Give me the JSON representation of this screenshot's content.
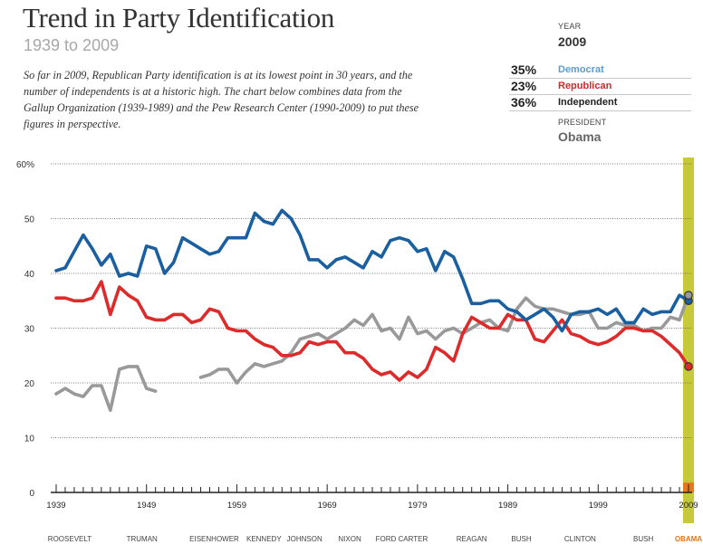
{
  "header": {
    "title": "Trend in Party Identification",
    "subtitle": "1939 to 2009",
    "description": "So far in 2009, Republican Party identification is at its lowest point in 30 years, and the number of independents is at a historic high. The chart below combines data from the Gallup Organization (1939-1989) and the Pew Research Center (1990-2009) to put these figures in perspective."
  },
  "sidebar": {
    "year_label": "YEAR",
    "year_value": "2009",
    "rows": [
      {
        "pct": "35%",
        "name": "Democrat",
        "color": "#5b9bd5"
      },
      {
        "pct": "23%",
        "name": "Republican",
        "color": "#d62728"
      },
      {
        "pct": "36%",
        "name": "Independent",
        "color": "#222222"
      }
    ],
    "president_label": "PRESIDENT",
    "president_value": "Obama"
  },
  "chart_data": {
    "type": "line",
    "title": "",
    "xlabel": "",
    "ylabel": "",
    "xlim": [
      1939,
      2009
    ],
    "ylim": [
      0,
      60
    ],
    "y_ticks": [
      0,
      10,
      20,
      30,
      40,
      50,
      60
    ],
    "y_tick_labels": [
      "0",
      "10",
      "20",
      "30",
      "40",
      "50",
      "60%"
    ],
    "x_ticks": [
      1939,
      1949,
      1959,
      1969,
      1979,
      1989,
      1999,
      2009
    ],
    "x_tick_labels": [
      "1939",
      "1949",
      "1959",
      "1969",
      "1979",
      "1989",
      "1999",
      "2009"
    ],
    "grid": true,
    "highlight_year": 2009,
    "highlight_color": "#c6c93a",
    "series": [
      {
        "name": "Democrat",
        "color": "#1a5fa0",
        "points": [
          [
            1939,
            40.5
          ],
          [
            1940,
            41
          ],
          [
            1941,
            44
          ],
          [
            1942,
            47
          ],
          [
            1943,
            44.5
          ],
          [
            1944,
            41.5
          ],
          [
            1945,
            43.5
          ],
          [
            1946,
            39.5
          ],
          [
            1947,
            40
          ],
          [
            1948,
            39.5
          ],
          [
            1949,
            45
          ],
          [
            1950,
            44.5
          ],
          [
            1951,
            40
          ],
          [
            1952,
            42
          ],
          [
            1953,
            46.5
          ],
          [
            1954,
            45.5
          ],
          [
            1955,
            44.5
          ],
          [
            1956,
            43.5
          ],
          [
            1957,
            44
          ],
          [
            1958,
            46.5
          ],
          [
            1959,
            46.5
          ],
          [
            1960,
            46.5
          ],
          [
            1961,
            51
          ],
          [
            1962,
            49.5
          ],
          [
            1963,
            49
          ],
          [
            1964,
            51.5
          ],
          [
            1965,
            50
          ],
          [
            1966,
            47
          ],
          [
            1967,
            42.5
          ],
          [
            1968,
            42.5
          ],
          [
            1969,
            41
          ],
          [
            1970,
            42.5
          ],
          [
            1971,
            43
          ],
          [
            1972,
            42
          ],
          [
            1973,
            41
          ],
          [
            1974,
            44
          ],
          [
            1975,
            43
          ],
          [
            1976,
            46
          ],
          [
            1977,
            46.5
          ],
          [
            1978,
            46
          ],
          [
            1979,
            44
          ],
          [
            1980,
            44.5
          ],
          [
            1981,
            40.5
          ],
          [
            1982,
            44
          ],
          [
            1983,
            43
          ],
          [
            1984,
            39
          ],
          [
            1985,
            34.5
          ],
          [
            1986,
            34.5
          ],
          [
            1987,
            35
          ],
          [
            1988,
            35
          ],
          [
            1989,
            33.5
          ],
          [
            1990,
            33
          ],
          [
            1991,
            31.5
          ],
          [
            1992,
            32.5
          ],
          [
            1993,
            33.5
          ],
          [
            1994,
            32
          ],
          [
            1995,
            29.5
          ],
          [
            1996,
            32.5
          ],
          [
            1997,
            33
          ],
          [
            1998,
            33
          ],
          [
            1999,
            33.5
          ],
          [
            2000,
            32.5
          ],
          [
            2001,
            33.5
          ],
          [
            2002,
            31
          ],
          [
            2003,
            31
          ],
          [
            2004,
            33.5
          ],
          [
            2005,
            32.5
          ],
          [
            2006,
            33
          ],
          [
            2007,
            33
          ],
          [
            2008,
            36
          ],
          [
            2009,
            35
          ]
        ]
      },
      {
        "name": "Republican",
        "color": "#dd2a2a",
        "points": [
          [
            1939,
            35.5
          ],
          [
            1940,
            35.5
          ],
          [
            1941,
            35
          ],
          [
            1942,
            35
          ],
          [
            1943,
            35.5
          ],
          [
            1944,
            38.5
          ],
          [
            1945,
            32.5
          ],
          [
            1946,
            37.5
          ],
          [
            1947,
            36
          ],
          [
            1948,
            35
          ],
          [
            1949,
            32
          ],
          [
            1950,
            31.5
          ],
          [
            1951,
            31.5
          ],
          [
            1952,
            32.5
          ],
          [
            1953,
            32.5
          ],
          [
            1954,
            31
          ],
          [
            1955,
            31.5
          ],
          [
            1956,
            33.5
          ],
          [
            1957,
            33
          ],
          [
            1958,
            30
          ],
          [
            1959,
            29.5
          ],
          [
            1960,
            29.5
          ],
          [
            1961,
            28
          ],
          [
            1962,
            27
          ],
          [
            1963,
            26.5
          ],
          [
            1964,
            25
          ],
          [
            1965,
            25
          ],
          [
            1966,
            25.5
          ],
          [
            1967,
            27.5
          ],
          [
            1968,
            27
          ],
          [
            1969,
            27.5
          ],
          [
            1970,
            27.5
          ],
          [
            1971,
            25.5
          ],
          [
            1972,
            25.5
          ],
          [
            1973,
            24.5
          ],
          [
            1974,
            22.5
          ],
          [
            1975,
            21.5
          ],
          [
            1976,
            22
          ],
          [
            1977,
            20.5
          ],
          [
            1978,
            22
          ],
          [
            1979,
            21
          ],
          [
            1980,
            22.5
          ],
          [
            1981,
            26.5
          ],
          [
            1982,
            25.5
          ],
          [
            1983,
            24
          ],
          [
            1984,
            29
          ],
          [
            1985,
            32
          ],
          [
            1986,
            31
          ],
          [
            1987,
            30
          ],
          [
            1988,
            30
          ],
          [
            1989,
            32.5
          ],
          [
            1990,
            31.5
          ],
          [
            1991,
            31.5
          ],
          [
            1992,
            28
          ],
          [
            1993,
            27.5
          ],
          [
            1994,
            29.5
          ],
          [
            1995,
            31.5
          ],
          [
            1996,
            29
          ],
          [
            1997,
            28.5
          ],
          [
            1998,
            27.5
          ],
          [
            1999,
            27
          ],
          [
            2000,
            27.5
          ],
          [
            2001,
            28.5
          ],
          [
            2002,
            30
          ],
          [
            2003,
            30
          ],
          [
            2004,
            29.5
          ],
          [
            2005,
            29.5
          ],
          [
            2006,
            28.5
          ],
          [
            2007,
            27
          ],
          [
            2008,
            25.5
          ],
          [
            2009,
            23
          ]
        ]
      },
      {
        "name": "Independent",
        "color": "#999999",
        "segments": [
          [
            [
              1939,
              18
            ],
            [
              1940,
              19
            ],
            [
              1941,
              18
            ],
            [
              1942,
              17.5
            ],
            [
              1943,
              19.5
            ],
            [
              1944,
              19.5
            ],
            [
              1945,
              15
            ],
            [
              1946,
              22.5
            ],
            [
              1947,
              23
            ],
            [
              1948,
              23
            ],
            [
              1949,
              19
            ],
            [
              1950,
              18.5
            ]
          ],
          [
            [
              1955,
              21
            ],
            [
              1956,
              21.5
            ],
            [
              1957,
              22.5
            ],
            [
              1958,
              22.5
            ],
            [
              1959,
              20
            ],
            [
              1960,
              22
            ],
            [
              1961,
              23.5
            ],
            [
              1962,
              23
            ],
            [
              1963,
              23.5
            ],
            [
              1964,
              24
            ],
            [
              1965,
              25.5
            ],
            [
              1966,
              28
            ],
            [
              1967,
              28.5
            ],
            [
              1968,
              29
            ],
            [
              1969,
              28
            ],
            [
              1970,
              29
            ],
            [
              1971,
              30
            ],
            [
              1972,
              31.5
            ],
            [
              1973,
              30.5
            ],
            [
              1974,
              32.5
            ],
            [
              1975,
              29.5
            ],
            [
              1976,
              30
            ],
            [
              1977,
              28
            ],
            [
              1978,
              32
            ],
            [
              1979,
              29
            ],
            [
              1980,
              29.5
            ],
            [
              1981,
              28
            ],
            [
              1982,
              29.5
            ],
            [
              1983,
              30
            ],
            [
              1984,
              29
            ],
            [
              1985,
              30
            ],
            [
              1986,
              31
            ],
            [
              1987,
              31.5
            ],
            [
              1988,
              30
            ],
            [
              1989,
              29.5
            ],
            [
              1990,
              33.5
            ],
            [
              1991,
              35.5
            ],
            [
              1992,
              34
            ],
            [
              1993,
              33.5
            ],
            [
              1994,
              33.5
            ],
            [
              1995,
              33
            ],
            [
              1996,
              32.5
            ],
            [
              1997,
              32.5
            ],
            [
              1998,
              33
            ],
            [
              1999,
              30
            ],
            [
              2000,
              30
            ],
            [
              2001,
              31
            ],
            [
              2002,
              30.5
            ],
            [
              2003,
              30.5
            ],
            [
              2004,
              29.5
            ],
            [
              2005,
              30
            ],
            [
              2006,
              30
            ],
            [
              2007,
              32
            ],
            [
              2008,
              31.5
            ],
            [
              2009,
              36
            ]
          ]
        ]
      }
    ],
    "presidents": [
      {
        "name": "ROOSEVELT",
        "year": 1940.5
      },
      {
        "name": "TRUMAN",
        "year": 1948.5
      },
      {
        "name": "EISENHOWER",
        "year": 1956.5
      },
      {
        "name": "KENNEDY",
        "year": 1962
      },
      {
        "name": "JOHNSON",
        "year": 1966.5
      },
      {
        "name": "NIXON",
        "year": 1971.5
      },
      {
        "name": "FORD",
        "year": 1975.5
      },
      {
        "name": "CARTER",
        "year": 1978.5
      },
      {
        "name": "REAGAN",
        "year": 1985
      },
      {
        "name": "BUSH",
        "year": 1990.5
      },
      {
        "name": "CLINTON",
        "year": 1997
      },
      {
        "name": "BUSH",
        "year": 2004
      },
      {
        "name": "OBAMA",
        "year": 2009,
        "color": "#e8761c"
      }
    ]
  }
}
